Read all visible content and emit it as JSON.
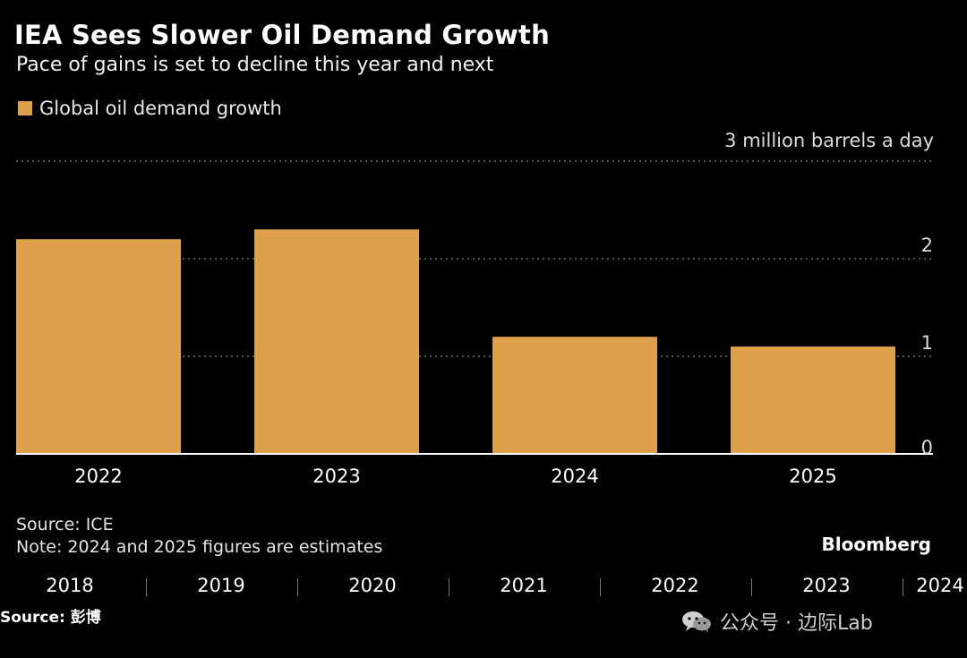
{
  "header": {
    "title": "IEA Sees Slower Oil Demand Growth",
    "subtitle": "Pace of gains is set to decline this year and next"
  },
  "legend": {
    "label": "Global oil demand growth",
    "color": "#dea04a"
  },
  "colors": {
    "background": "#000000",
    "bar": "#dea04a",
    "text": "#ffffff",
    "grid": "#6e6e6e"
  },
  "chart_data": {
    "type": "bar",
    "title": "IEA Sees Slower Oil Demand Growth",
    "subtitle": "Pace of gains is set to decline this year and next",
    "categories": [
      "2022",
      "2023",
      "2024",
      "2025"
    ],
    "series": [
      {
        "name": "Global oil demand growth",
        "values": [
          2.2,
          2.3,
          1.2,
          1.1
        ]
      }
    ],
    "unit_label": "3 million  barrels a day",
    "y_ticks": [
      "0",
      "1",
      "2",
      "3"
    ],
    "ylim": [
      0,
      3
    ],
    "xlabel": "",
    "ylabel": "million barrels a day",
    "grid": true,
    "legend_position": "top-left"
  },
  "footer": {
    "source": "Source: ICE",
    "note": "Note: 2024 and 2025 figures are estimates",
    "brand": "Bloomberg",
    "timeline_years": [
      "2018",
      "2019",
      "2020",
      "2021",
      "2022",
      "2023",
      "2024"
    ],
    "image_source": "Source: 彭博",
    "watermark_icon": "wechat-icon",
    "watermark_text": "公众号 · 边际Lab"
  }
}
